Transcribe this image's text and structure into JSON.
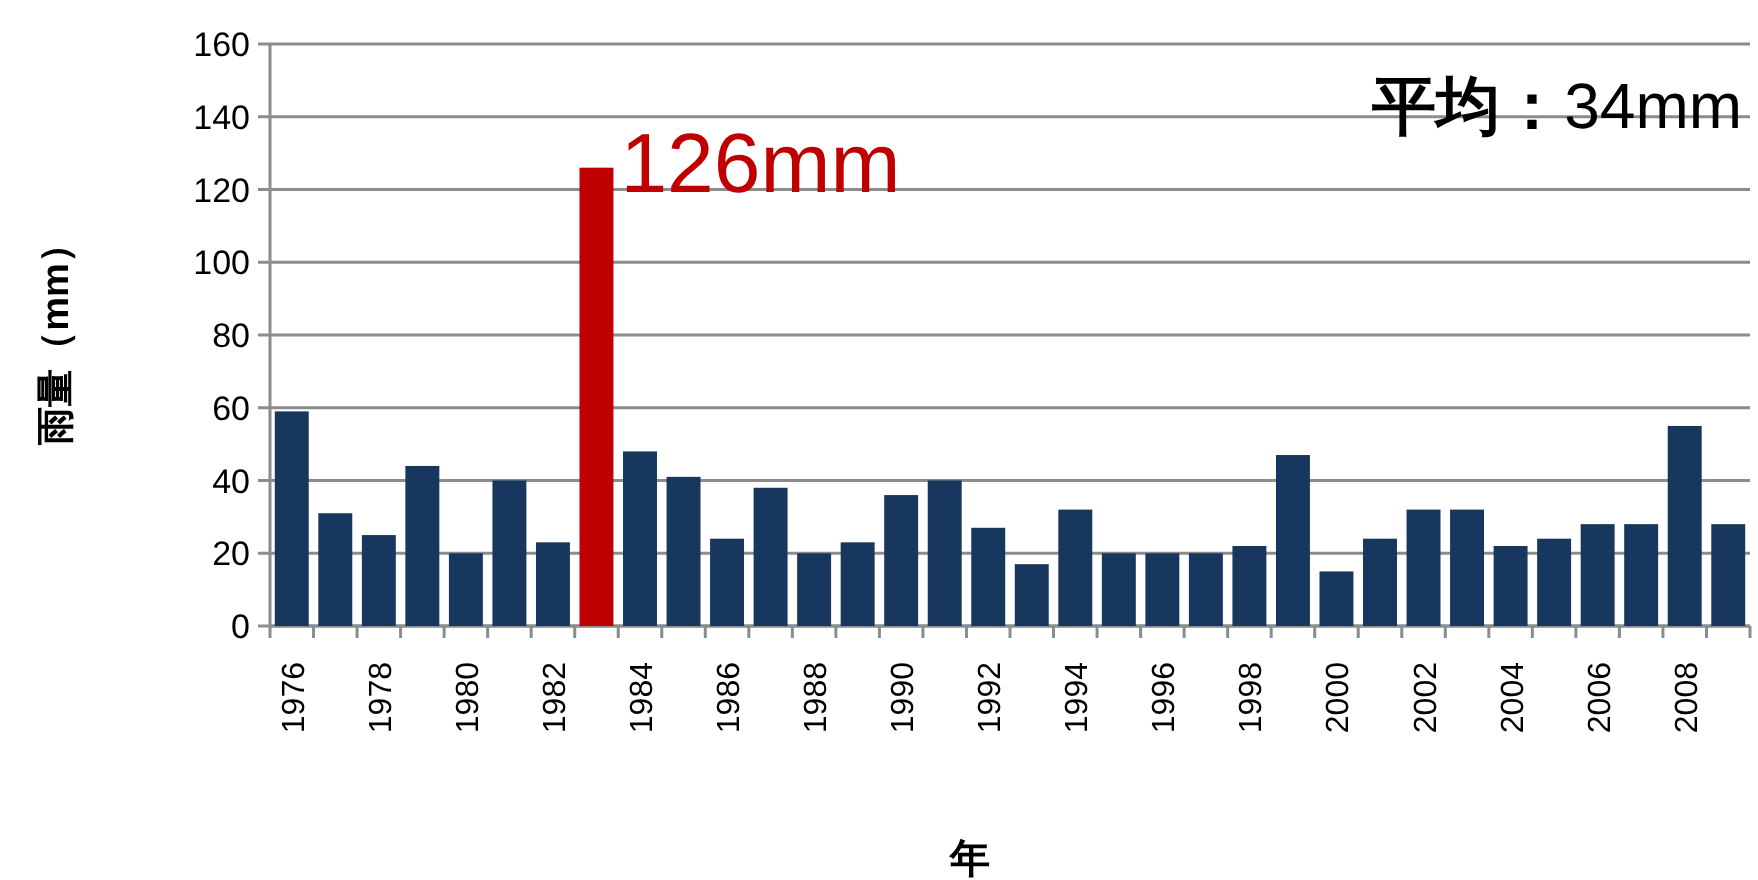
{
  "chart_data": {
    "type": "bar",
    "xlabel": "年",
    "ylabel": "雨量（mm）",
    "categories": [
      "1976",
      null,
      "1978",
      null,
      "1980",
      null,
      "1982",
      null,
      "1984",
      null,
      "1986",
      null,
      "1988",
      null,
      "1990",
      null,
      "1992",
      null,
      "1994",
      null,
      "1996",
      null,
      "1998",
      null,
      "2000",
      null,
      "2002",
      null,
      "2004",
      null,
      "2006",
      null,
      "2008",
      null
    ],
    "values": [
      59,
      31,
      25,
      44,
      20,
      40,
      23,
      126,
      48,
      41,
      24,
      38,
      20,
      23,
      36,
      40,
      27,
      17,
      32,
      20,
      20,
      20,
      22,
      47,
      15,
      24,
      32,
      32,
      22,
      24,
      28,
      28,
      55,
      28
    ],
    "colors": [
      "#17375e",
      "#17375e",
      "#17375e",
      "#17375e",
      "#17375e",
      "#17375e",
      "#17375e",
      "#c00000",
      "#17375e",
      "#17375e",
      "#17375e",
      "#17375e",
      "#17375e",
      "#17375e",
      "#17375e",
      "#17375e",
      "#17375e",
      "#17375e",
      "#17375e",
      "#17375e",
      "#17375e",
      "#17375e",
      "#17375e",
      "#17375e",
      "#17375e",
      "#17375e",
      "#17375e",
      "#17375e",
      "#17375e",
      "#17375e",
      "#17375e",
      "#17375e",
      "#17375e",
      "#17375e"
    ],
    "ylim": [
      0,
      160
    ],
    "yticks": [
      0,
      20,
      40,
      60,
      80,
      100,
      120,
      140,
      160
    ],
    "grid": "y",
    "annotations": [
      "126mm",
      "**平均：**34mm"
    ]
  }
}
